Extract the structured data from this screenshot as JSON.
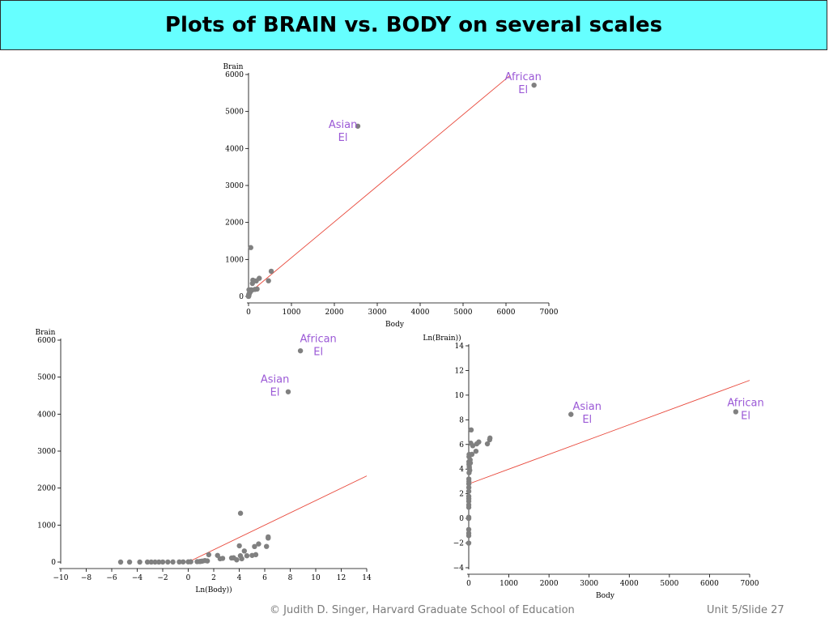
{
  "slide": {
    "title": "Plots of BRAIN vs. BODY on several scales",
    "footer_left": "© Judith D. Singer, Harvard Graduate School of Education",
    "footer_right": "Unit 5/Slide 27"
  },
  "colors": {
    "title_bg": "#66ffff",
    "point": "#808080",
    "fit_line": "#e8473a",
    "annotation": "#9b59d6"
  },
  "chart_data": [
    {
      "type": "scatter",
      "xlabel": "Body",
      "ylabel": "Brain",
      "xlim": [
        0,
        7000
      ],
      "ylim": [
        0,
        6000
      ],
      "xticks": [
        "0",
        "1000",
        "2000",
        "3000",
        "4000",
        "5000",
        "6000",
        "7000"
      ],
      "yticks": [
        "0",
        "1000",
        "2000",
        "3000",
        "4000",
        "5000",
        "6000"
      ],
      "fit_line": {
        "x": [
          0,
          6100
        ],
        "y": [
          80,
          5980
        ]
      },
      "points": [
        {
          "x": 6654,
          "y": 5712
        },
        {
          "x": 2547,
          "y": 4603
        },
        {
          "x": 52,
          "y": 1320
        },
        {
          "x": 529,
          "y": 680
        },
        {
          "x": 465,
          "y": 423
        },
        {
          "x": 100,
          "y": 440
        },
        {
          "x": 250,
          "y": 490
        },
        {
          "x": 180,
          "y": 420
        },
        {
          "x": 200,
          "y": 200
        },
        {
          "x": 150,
          "y": 190
        },
        {
          "x": 60,
          "y": 180
        },
        {
          "x": 35,
          "y": 115
        },
        {
          "x": 10,
          "y": 180
        },
        {
          "x": 5,
          "y": 50
        },
        {
          "x": 3,
          "y": 25
        },
        {
          "x": 1,
          "y": 6
        },
        {
          "x": 0.5,
          "y": 4
        },
        {
          "x": 2,
          "y": 12
        },
        {
          "x": 0.1,
          "y": 1
        },
        {
          "x": 4,
          "y": 20
        },
        {
          "x": 15,
          "y": 60
        },
        {
          "x": 25,
          "y": 100
        },
        {
          "x": 80,
          "y": 170
        },
        {
          "x": 90,
          "y": 350
        },
        {
          "x": 40,
          "y": 120
        },
        {
          "x": 8,
          "y": 40
        },
        {
          "x": 12,
          "y": 70
        },
        {
          "x": 0.3,
          "y": 2
        }
      ],
      "annotations": [
        {
          "lines": [
            "African",
            "El"
          ],
          "x": 6400,
          "y": 5850
        },
        {
          "lines": [
            "Asian",
            "El"
          ],
          "x": 2200,
          "y": 4550
        }
      ]
    },
    {
      "type": "scatter",
      "xlabel": "Ln(Body))",
      "ylabel": "Brain",
      "xlim": [
        -10,
        14
      ],
      "ylim": [
        0,
        6000
      ],
      "xticks": [
        "−10",
        "−8",
        "−6",
        "−4",
        "−2",
        "0",
        "2",
        "4",
        "6",
        "8",
        "10",
        "12",
        "14"
      ],
      "yticks": [
        "0",
        "1000",
        "2000",
        "3000",
        "4000",
        "5000",
        "6000"
      ],
      "fit_line": {
        "x": [
          0,
          14
        ],
        "y": [
          0,
          2330
        ]
      },
      "points": [
        {
          "x": 8.8,
          "y": 5712
        },
        {
          "x": 7.84,
          "y": 4603
        },
        {
          "x": 4.1,
          "y": 1320
        },
        {
          "x": 6.27,
          "y": 680
        },
        {
          "x": 6.14,
          "y": 423
        },
        {
          "x": 6.27,
          "y": 650
        },
        {
          "x": 4.01,
          "y": 440
        },
        {
          "x": 5.52,
          "y": 490
        },
        {
          "x": 5.2,
          "y": 420
        },
        {
          "x": 5.3,
          "y": 200
        },
        {
          "x": 5.01,
          "y": 180
        },
        {
          "x": 4.4,
          "y": 300
        },
        {
          "x": 4.09,
          "y": 170
        },
        {
          "x": 3.56,
          "y": 115
        },
        {
          "x": 2.3,
          "y": 180
        },
        {
          "x": 1.61,
          "y": 200
        },
        {
          "x": 4.6,
          "y": 170
        },
        {
          "x": 4.2,
          "y": 90
        },
        {
          "x": 3.8,
          "y": 60
        },
        {
          "x": 3.4,
          "y": 110
        },
        {
          "x": 2.7,
          "y": 100
        },
        {
          "x": 2.5,
          "y": 90
        },
        {
          "x": 1.1,
          "y": 25
        },
        {
          "x": 0.7,
          "y": 12
        },
        {
          "x": 1.3,
          "y": 40
        },
        {
          "x": 0.2,
          "y": 8
        },
        {
          "x": 0.0,
          "y": 6
        },
        {
          "x": -0.4,
          "y": 5
        },
        {
          "x": -0.7,
          "y": 4
        },
        {
          "x": -1.2,
          "y": 3
        },
        {
          "x": -1.6,
          "y": 2
        },
        {
          "x": -2.0,
          "y": 2
        },
        {
          "x": -2.3,
          "y": 1
        },
        {
          "x": -2.6,
          "y": 1
        },
        {
          "x": -2.9,
          "y": 1
        },
        {
          "x": -3.2,
          "y": 0.5
        },
        {
          "x": -3.8,
          "y": 0.4
        },
        {
          "x": -4.6,
          "y": 0.3
        },
        {
          "x": -5.3,
          "y": 0.2
        },
        {
          "x": 0.9,
          "y": 15
        },
        {
          "x": 1.5,
          "y": 30
        },
        {
          "x": 1.0,
          "y": 20
        }
      ],
      "annotations": [
        {
          "lines": [
            "African",
            "El"
          ],
          "x": 10.2,
          "y": 5950
        },
        {
          "lines": [
            "Asian",
            "El"
          ],
          "x": 6.8,
          "y": 4850
        }
      ]
    },
    {
      "type": "scatter",
      "xlabel": "Body",
      "ylabel": "Ln(Brain))",
      "xlim": [
        0,
        7000
      ],
      "ylim": [
        -4,
        14
      ],
      "xticks": [
        "0",
        "1000",
        "2000",
        "3000",
        "4000",
        "5000",
        "6000",
        "7000"
      ],
      "yticks": [
        "−4",
        "−2",
        "0",
        "2",
        "4",
        "6",
        "8",
        "10",
        "12",
        "14"
      ],
      "fit_line": {
        "x": [
          0,
          7000
        ],
        "y": [
          2.8,
          11.2
        ]
      },
      "points": [
        {
          "x": 2547,
          "y": 8.44
        },
        {
          "x": 6654,
          "y": 8.65
        },
        {
          "x": 529,
          "y": 6.52
        },
        {
          "x": 521,
          "y": 6.38
        },
        {
          "x": 465,
          "y": 6.05
        },
        {
          "x": 250,
          "y": 6.2
        },
        {
          "x": 200,
          "y": 6.05
        },
        {
          "x": 180,
          "y": 5.45
        },
        {
          "x": 60,
          "y": 7.18
        },
        {
          "x": 52,
          "y": 6.1
        },
        {
          "x": 100,
          "y": 5.9
        },
        {
          "x": 80,
          "y": 5.2
        },
        {
          "x": 35,
          "y": 4.75
        },
        {
          "x": 10,
          "y": 5.19
        },
        {
          "x": 5,
          "y": 4.6
        },
        {
          "x": 15,
          "y": 4.1
        },
        {
          "x": 25,
          "y": 3.9
        },
        {
          "x": 40,
          "y": 4.5
        },
        {
          "x": 8,
          "y": 3.7
        },
        {
          "x": 12,
          "y": 4.25
        },
        {
          "x": 3,
          "y": 3.2
        },
        {
          "x": 2,
          "y": 2.5
        },
        {
          "x": 4,
          "y": 3.0
        },
        {
          "x": 1,
          "y": 1.8
        },
        {
          "x": 0.5,
          "y": 1.39
        },
        {
          "x": 0.3,
          "y": 0.9
        },
        {
          "x": 1,
          "y": 2.2
        },
        {
          "x": 0.8,
          "y": 1.1
        },
        {
          "x": 0.1,
          "y": 0.1
        },
        {
          "x": 0.2,
          "y": 0.0
        },
        {
          "x": 0.1,
          "y": -0.9
        },
        {
          "x": 0.2,
          "y": -1.2
        },
        {
          "x": 0.1,
          "y": -1.4
        },
        {
          "x": 0.05,
          "y": -2.0
        },
        {
          "x": 2,
          "y": 2.8
        },
        {
          "x": 6,
          "y": 4.4
        },
        {
          "x": 7,
          "y": 5.0
        },
        {
          "x": 1.5,
          "y": 1.6
        }
      ],
      "annotations": [
        {
          "lines": [
            "Asian",
            "El"
          ],
          "x": 2950,
          "y": 8.8
        },
        {
          "lines": [
            "African",
            "El"
          ],
          "x": 6900,
          "y": 9.1
        }
      ]
    }
  ]
}
